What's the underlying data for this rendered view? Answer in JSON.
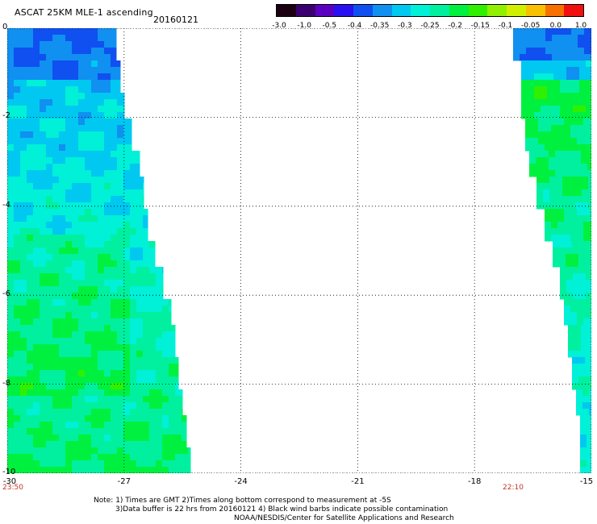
{
  "header": {
    "title": "ASCAT 25KM MLE-1 ascending",
    "date": "20160121"
  },
  "colorbar": {
    "colors": [
      "#1a0010",
      "#3a0070",
      "#5a00c0",
      "#2a10f0",
      "#1050f0",
      "#1090f0",
      "#00c8f0",
      "#00f0d8",
      "#00f0a0",
      "#00f040",
      "#30f000",
      "#90f000",
      "#d0f000",
      "#f8c000",
      "#f87000",
      "#f01010"
    ],
    "labels": [
      "-3.0",
      "-1.0",
      "-0.5",
      "-0.4",
      "-0.35",
      "-0.3",
      "-0.25",
      "-0.2",
      "-0.15",
      "-0.1",
      "-0.05",
      "0.0",
      "1.0"
    ]
  },
  "axes": {
    "y_ticks": [
      "0",
      "-2",
      "-4",
      "-6",
      "-8",
      "-10"
    ],
    "x_ticks": [
      "-30",
      "-27",
      "-24",
      "-21",
      "-18",
      "-15"
    ],
    "x_range": [
      -30,
      -15
    ],
    "y_range": [
      0,
      -10
    ],
    "grid": "dotted"
  },
  "time_labels": {
    "left": "23:50",
    "right": "22:10"
  },
  "notes": {
    "line1": "Note: 1) Times are GMT 2)Times along bottom correspond to measurement at -5S",
    "line2": "3)Data buffer is 22 hrs from 20160121 4) Black wind barbs indicate possible contamination",
    "line3": "NOAA/NESDIS/Center for Satellite Applications and Research"
  },
  "swaths": {
    "left": {
      "lon_min": -30,
      "edge_lon": [
        -27.2,
        -27.1,
        -27.0,
        -26.8,
        -26.6,
        -26.5,
        -26.4,
        -26.2,
        -26.0,
        -25.8,
        -25.7,
        -25.6,
        -25.5,
        -25.4,
        -25.3
      ],
      "lat_top": 0,
      "lat_bottom": -10
    },
    "right": {
      "lon_max": -15,
      "edge_lon": [
        -17.0,
        -16.8,
        -16.8,
        -16.7,
        -16.6,
        -16.4,
        -16.2,
        -16.0,
        -15.8,
        -15.7,
        -15.6,
        -15.5,
        -15.4,
        -15.3,
        -15.3
      ],
      "lat_top": 0,
      "lat_bottom": -10
    }
  }
}
